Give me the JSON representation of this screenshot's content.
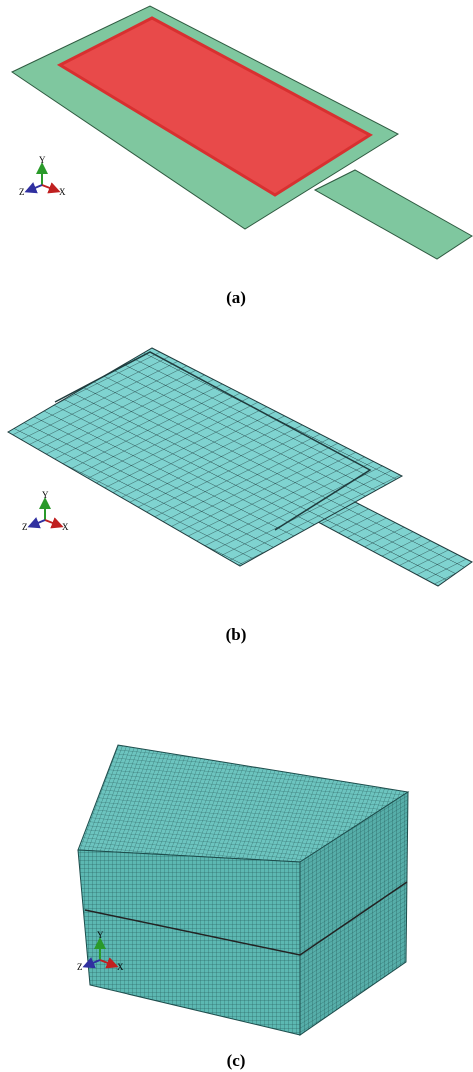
{
  "panels": [
    {
      "caption": "(a)",
      "triad": {
        "y": "Y",
        "z": "Z",
        "x": "X"
      }
    },
    {
      "caption": "(b)",
      "triad": {
        "y": "Y",
        "z": "Z",
        "x": "X"
      }
    },
    {
      "caption": "(c)",
      "triad": {
        "y": "Y",
        "z": "Z",
        "x": "X"
      }
    }
  ]
}
